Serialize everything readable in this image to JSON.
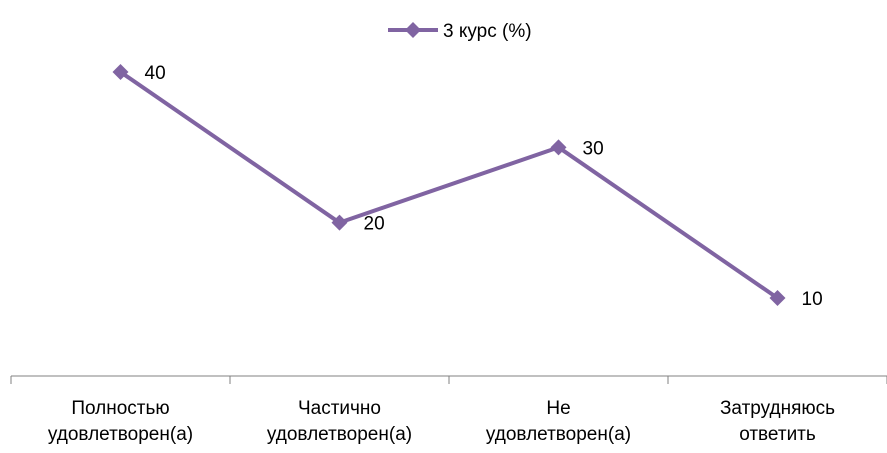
{
  "chart_data": {
    "type": "line",
    "categories": [
      [
        "Полностью",
        "удовлетворен(а)"
      ],
      [
        "Частично",
        "удовлетворен(а)"
      ],
      [
        "Не",
        "удовлетворен(а)"
      ],
      [
        "Затрудняюсь",
        "ответить"
      ]
    ],
    "series": [
      {
        "name": "3 курс (%)",
        "values": [
          40,
          20,
          30,
          10
        ],
        "color": "#8064a2"
      }
    ],
    "data_labels": [
      "40",
      "20",
      "30",
      "10"
    ],
    "ylim": [
      0,
      50
    ],
    "grid": false,
    "legend_position": "top",
    "marker": "diamond"
  }
}
